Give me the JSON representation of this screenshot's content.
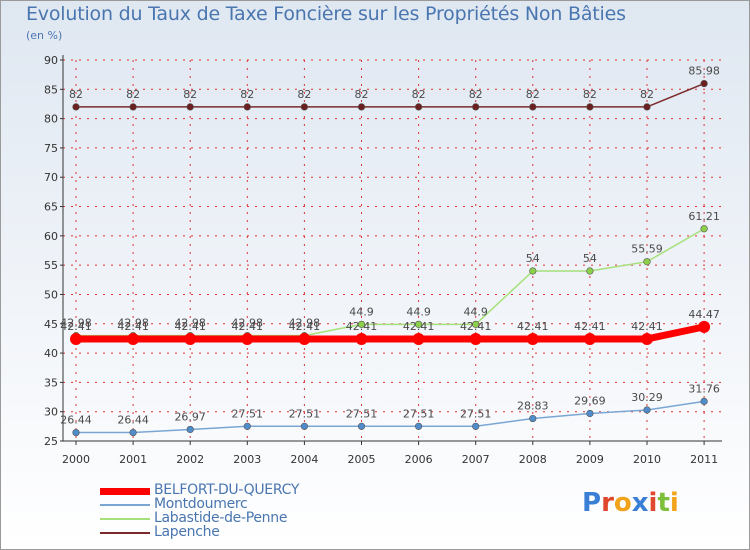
{
  "title": "Evolution du Taux de Taxe Foncière sur les Propriétés Non Bâties",
  "unit_label": "(en %)",
  "logo_text": "Proxiti",
  "colors": {
    "axis": "#333333",
    "grid_dash": "#dd3333",
    "title": "#4a76b0"
  },
  "chart_data": {
    "type": "line",
    "title": "Evolution du Taux de Taxe Foncière sur les Propriétés Non Bâties",
    "ylabel": "(en %)",
    "xlabel": "",
    "ylim": [
      25,
      90
    ],
    "yticks": [
      25,
      30,
      35,
      40,
      45,
      50,
      55,
      60,
      65,
      70,
      75,
      80,
      85,
      90
    ],
    "x": [
      "2000",
      "2001",
      "2002",
      "2003",
      "2004",
      "2005",
      "2006",
      "2007",
      "2008",
      "2009",
      "2010",
      "2011"
    ],
    "series": [
      {
        "name": "Lapenche",
        "color": "#7a2a2a",
        "marker": "#6b1f1f",
        "width": 1.5,
        "values": [
          82,
          82,
          82,
          82,
          82,
          82,
          82,
          82,
          82,
          82,
          82,
          85.98
        ],
        "labels": [
          "82",
          "82",
          "82",
          "82",
          "82",
          "82",
          "82",
          "82",
          "82",
          "82",
          "82",
          "85.98"
        ]
      },
      {
        "name": "Labastide-de-Penne",
        "color": "#a6e07a",
        "marker": "#8ccf4a",
        "width": 1.5,
        "values": [
          42.98,
          42.98,
          42.98,
          42.98,
          42.98,
          44.9,
          44.9,
          44.9,
          54,
          54,
          55.59,
          61.21
        ],
        "labels": [
          "42.98",
          "42.98",
          "42.98",
          "42.98",
          "42.98",
          "44.9",
          "44.9",
          "44.9",
          "54",
          "54",
          "55.59",
          "61.21"
        ]
      },
      {
        "name": "BELFORT-DU-QUERCY",
        "color": "#ff0000",
        "marker": "#ff0000",
        "width": 7,
        "values": [
          42.41,
          42.41,
          42.41,
          42.41,
          42.41,
          42.41,
          42.41,
          42.41,
          42.41,
          42.41,
          42.41,
          44.47
        ],
        "labels": [
          "42.41",
          "42.41",
          "42.41",
          "42.41",
          "42.41",
          "42.41",
          "42.41",
          "42.41",
          "42.41",
          "42.41",
          "42.41",
          "44.47"
        ]
      },
      {
        "name": "Montdoumerc",
        "color": "#7aa6d4",
        "marker": "#4f8cc9",
        "width": 1.5,
        "values": [
          26.44,
          26.44,
          26.97,
          27.51,
          27.51,
          27.51,
          27.51,
          27.51,
          28.83,
          29.69,
          30.29,
          31.76
        ],
        "labels": [
          "26.44",
          "26.44",
          "26.97",
          "27.51",
          "27.51",
          "27.51",
          "27.51",
          "27.51",
          "28.83",
          "29.69",
          "30.29",
          "31.76"
        ]
      }
    ],
    "legend_order": [
      "BELFORT-DU-QUERCY",
      "Montdoumerc",
      "Labastide-de-Penne",
      "Lapenche"
    ],
    "legend_position": "bottom-left"
  }
}
